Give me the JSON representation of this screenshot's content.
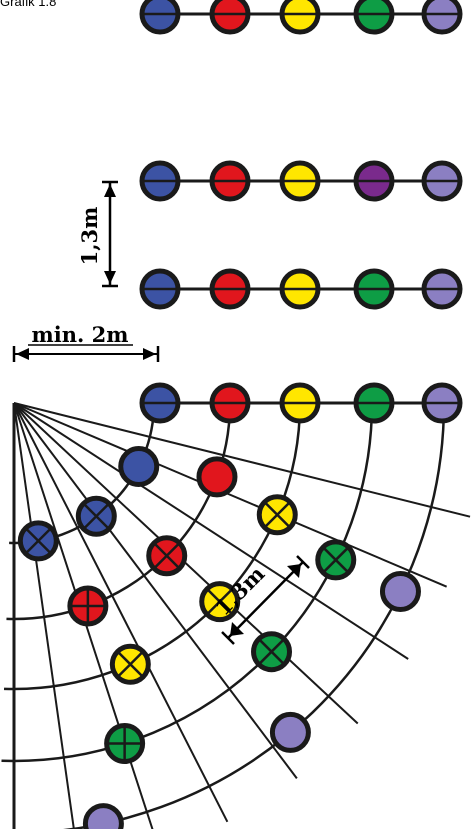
{
  "caption": "Grafik 1.8",
  "labels": {
    "row_spacing": "1,3m",
    "min_distance": "min. 2m",
    "radial_spacing": "1,3m"
  },
  "colors": {
    "blue": "#3c53a4",
    "red": "#e1161d",
    "yellow": "#ffe600",
    "green": "#0e9d45",
    "violet": "#8b7fc2",
    "purple": "#7a2a8c",
    "ink": "#1a1a1a"
  },
  "rows": [
    {
      "name": "row-1",
      "colors": [
        "blue",
        "red",
        "yellow",
        "green",
        "violet"
      ]
    },
    {
      "name": "row-2",
      "colors": [
        "blue",
        "red",
        "yellow",
        "purple",
        "violet"
      ]
    },
    {
      "name": "row-3",
      "colors": [
        "blue",
        "red",
        "yellow",
        "green",
        "violet"
      ]
    },
    {
      "name": "row-4",
      "colors": [
        "blue",
        "red",
        "yellow",
        "green",
        "violet"
      ]
    }
  ],
  "fan": {
    "rings": [
      {
        "name": "ring-1",
        "colors": [
          "blue",
          "blue",
          "blue"
        ]
      },
      {
        "name": "ring-2",
        "colors": [
          "red",
          "red",
          "red"
        ]
      },
      {
        "name": "ring-3",
        "colors": [
          "yellow",
          "yellow",
          "yellow"
        ]
      },
      {
        "name": "ring-4",
        "colors": [
          "green",
          "green",
          "green"
        ]
      },
      {
        "name": "ring-5",
        "colors": [
          "violet",
          "violet",
          "violet"
        ]
      }
    ]
  }
}
